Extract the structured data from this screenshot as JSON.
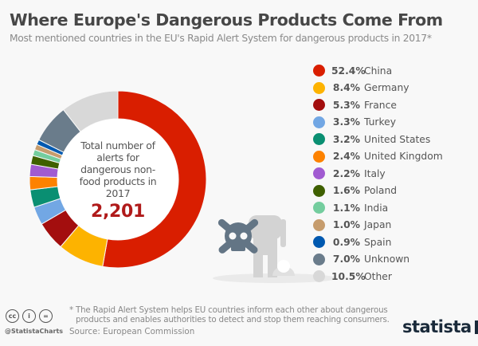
{
  "header": {
    "title": "Where Europe's Dangerous Products Come From",
    "subtitle": "Most mentioned countries in the EU's Rapid Alert System for dangerous products in 2017*"
  },
  "center": {
    "label": "Total number of alerts for dangerous non-food products in 2017",
    "total": "2,201"
  },
  "chart_data": {
    "type": "pie",
    "variant": "donut",
    "unit": "%",
    "categories": [
      "China",
      "Germany",
      "France",
      "Turkey",
      "United States",
      "United Kingdom",
      "Italy",
      "Poland",
      "India",
      "Japan",
      "Spain",
      "Unknown",
      "Other"
    ],
    "values": [
      52.4,
      8.4,
      5.3,
      3.3,
      3.2,
      2.4,
      2.2,
      1.6,
      1.1,
      1.0,
      0.9,
      7.0,
      10.5
    ],
    "labels": [
      "52.4%",
      "8.4%",
      "5.3%",
      "3.3%",
      "3.2%",
      "2.4%",
      "2.2%",
      "1.6%",
      "1.1%",
      "1.0%",
      "0.9%",
      "7.0%",
      "10.5%"
    ],
    "colors": [
      "#d91e00",
      "#fdb300",
      "#a30e0e",
      "#72a7e4",
      "#0a8f72",
      "#fd8200",
      "#a15bd1",
      "#3f6000",
      "#74cd9e",
      "#c69c6d",
      "#0059b0",
      "#6a7c8b",
      "#d8d8d8"
    ],
    "legend_position": "right"
  },
  "footer": {
    "note_line1": "* The Rapid Alert System helps EU countries inform each other about dangerous",
    "note_line2": "products and enables authorities to detect and stop them reaching consumers.",
    "source": "Source: European Commission",
    "handle": "@StatistaCharts",
    "brand": "statista",
    "cc_icons": [
      "cc",
      "i",
      "="
    ]
  }
}
